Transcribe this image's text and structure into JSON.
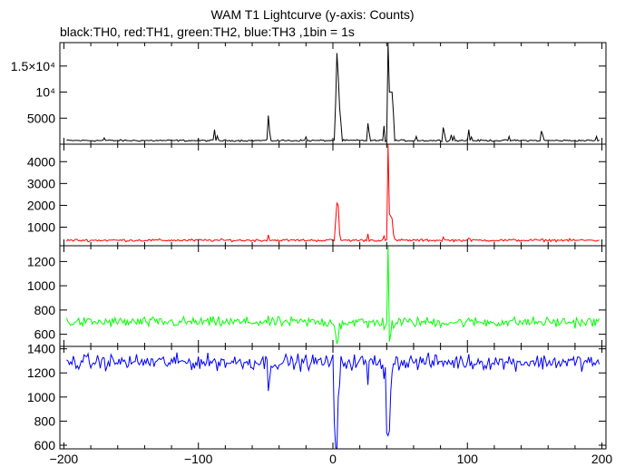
{
  "title": "WAM T1 Lightcurve (y-axis: Counts)",
  "subtitle": "black:TH0, red:TH1, green:TH2, blue:TH3 ,1bin = 1s",
  "chart_data": {
    "type": "line",
    "x_axis": {
      "ticks": [
        -200,
        -100,
        0,
        100,
        200
      ],
      "xlim": [
        -203,
        203
      ]
    },
    "panels": [
      {
        "series": "TH0",
        "color": "#000000",
        "ylim": [
          0,
          19500
        ],
        "ytick_values": [
          5000,
          10000,
          15000
        ],
        "ytick_labels": [
          "5000",
          "10⁴",
          "1.5×10⁴"
        ],
        "baseline": 700,
        "noise": 120,
        "spikes": [
          [
            -170,
            1200
          ],
          [
            -88,
            2800
          ],
          [
            -86,
            1600
          ],
          [
            -48,
            5500
          ],
          [
            -47,
            2300
          ],
          [
            -20,
            1400
          ],
          [
            2,
            8000
          ],
          [
            3,
            17500
          ],
          [
            4,
            13000
          ],
          [
            5,
            7000
          ],
          [
            6,
            4000
          ],
          [
            26,
            4000
          ],
          [
            27,
            2200
          ],
          [
            38,
            3500
          ],
          [
            41,
            19500
          ],
          [
            42,
            10000
          ],
          [
            43,
            10000
          ],
          [
            44,
            10000
          ],
          [
            45,
            6000
          ],
          [
            62,
            1500
          ],
          [
            82,
            3200
          ],
          [
            83,
            2000
          ],
          [
            88,
            1800
          ],
          [
            90,
            1500
          ],
          [
            101,
            2800
          ],
          [
            103,
            1400
          ],
          [
            131,
            1500
          ],
          [
            155,
            2500
          ],
          [
            156,
            1800
          ],
          [
            196,
            1500
          ]
        ]
      },
      {
        "series": "TH1",
        "color": "#ff0000",
        "ylim": [
          150,
          4800
        ],
        "ytick_values": [
          1000,
          2000,
          3000,
          4000
        ],
        "ytick_labels": [
          "1000",
          "2000",
          "3000",
          "4000"
        ],
        "baseline": 400,
        "noise": 40,
        "spikes": [
          [
            -48,
            650
          ],
          [
            2,
            1300
          ],
          [
            3,
            2100
          ],
          [
            4,
            2000
          ],
          [
            5,
            700
          ],
          [
            26,
            700
          ],
          [
            38,
            600
          ],
          [
            41,
            4800
          ],
          [
            42,
            1600
          ],
          [
            43,
            1500
          ],
          [
            44,
            1400
          ],
          [
            45,
            700
          ],
          [
            82,
            550
          ],
          [
            101,
            500
          ]
        ]
      },
      {
        "series": "TH2",
        "color": "#00ff00",
        "ylim": [
          500,
          1330
        ],
        "ytick_values": [
          600,
          800,
          1000,
          1200
        ],
        "ytick_labels": [
          "600",
          "800",
          "1000",
          "1200"
        ],
        "baseline": 700,
        "noise": 30,
        "spikes": [
          [
            2,
            600
          ],
          [
            3,
            520
          ],
          [
            4,
            560
          ],
          [
            6,
            640
          ],
          [
            26,
            650
          ],
          [
            38,
            640
          ],
          [
            41,
            1330
          ],
          [
            42,
            540
          ],
          [
            43,
            600
          ],
          [
            45,
            650
          ]
        ]
      },
      {
        "series": "TH3",
        "color": "#0000ff",
        "ylim": [
          570,
          1420
        ],
        "ytick_values": [
          600,
          800,
          1000,
          1200,
          1400
        ],
        "ytick_labels": [
          "600",
          "800",
          "1000",
          "1200",
          "1400"
        ],
        "baseline": 1290,
        "noise": 45,
        "spikes": [
          [
            -48,
            1050
          ],
          [
            -47,
            1150
          ],
          [
            1,
            800
          ],
          [
            2,
            580
          ],
          [
            3,
            570
          ],
          [
            4,
            1000
          ],
          [
            5,
            1100
          ],
          [
            26,
            1100
          ],
          [
            38,
            1150
          ],
          [
            40,
            700
          ],
          [
            41,
            680
          ],
          [
            42,
            720
          ],
          [
            43,
            1050
          ],
          [
            44,
            1200
          ]
        ]
      }
    ]
  }
}
